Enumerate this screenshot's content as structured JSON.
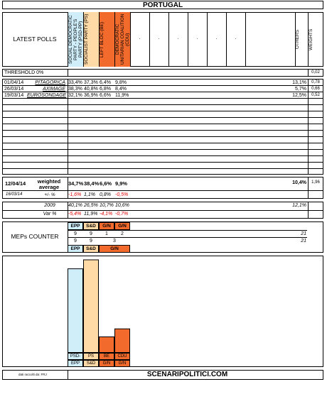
{
  "title": "PORTUGAL",
  "latest_polls_label": "LATEST POLLS",
  "weights_label": "WEIGHTS",
  "others_label": "OTHERS",
  "parties": [
    {
      "name": "SOCIAL DEMOCRATIC PARTY - PEOPLE'S PARTY (PSD-PP)",
      "color": "#cfeefa"
    },
    {
      "name": "SOCIALIST PARTY (PS)",
      "color": "#ffd9a6"
    },
    {
      "name": "LEFT BLOC (BE)",
      "color": "#f26b2d"
    },
    {
      "name": "DEMOCRATIC UNITARIAN COALITION (CDU)",
      "color": "#f26b2d"
    }
  ],
  "dot_placeholders": [
    ".",
    ".",
    ".",
    ".",
    ".",
    "."
  ],
  "threshold": {
    "label": "THRESHOLD 0%",
    "weight": "0,02"
  },
  "polls": [
    {
      "date": "01/04/14",
      "institute": "PITAGORICA",
      "values": [
        "33,4%",
        "37,3%",
        "6,4%",
        "9,8%"
      ],
      "others": "13,1%",
      "weight": "0,78"
    },
    {
      "date": "26/03/14",
      "institute": "AXIMAGE",
      "values": [
        "38,3%",
        "40,8%",
        "6,8%",
        "8,4%"
      ],
      "others": "5,7%",
      "weight": "0,66"
    },
    {
      "date": "19/03/14",
      "institute": "EUROSONDAGE",
      "values": [
        "32,1%",
        "36,9%",
        "6,6%",
        "11,9%"
      ],
      "others": "12,5%",
      "weight": "0,52"
    }
  ],
  "weighted": {
    "date": "12/04/14",
    "label_line1": "weighted",
    "label_line2": "average",
    "values": [
      "34,7%",
      "38,4%",
      "6,6%",
      "9,9%"
    ],
    "others": "10,4%",
    "weight": "1,96",
    "prev_date": "16/03/14",
    "delta_label": "+/- %",
    "deltas": [
      "-1,6%",
      "1,1%",
      "0,8%",
      "-0,5%"
    ]
  },
  "election": {
    "year": "2009",
    "values": [
      "40,1%",
      "26,5%",
      "10,7%",
      "10,6%"
    ],
    "others": "12,1%",
    "var_label": "Var %",
    "vars": [
      "-5,4%",
      "11,9%",
      "-4,1%",
      "-0,7%"
    ]
  },
  "meps": {
    "label": "MEPs COUNTER",
    "groups_top": [
      "EPP",
      "S&D",
      "G/N",
      "G/N"
    ],
    "seats_row1": [
      "9",
      "9",
      "1",
      "2"
    ],
    "total1": "21",
    "seats_row2": [
      "9",
      "9",
      "3"
    ],
    "total2": "21",
    "groups_bottom": [
      "EPP",
      "S&D",
      "G/N"
    ]
  },
  "bars": {
    "labels": [
      "PSD-PP",
      "PS",
      "BE",
      "CDU"
    ],
    "groups": [
      "EPP",
      "S&D",
      "G/N",
      "G/N"
    ],
    "values": [
      34.7,
      38.4,
      6.6,
      9.9
    ]
  },
  "footer": {
    "source": "dati raccolti da: FRJ",
    "site": "SCENARIPOLITICI.COM"
  },
  "colors": {
    "epp": "#cfeefa",
    "sd": "#ffd9a6",
    "gn": "#f26b2d"
  }
}
